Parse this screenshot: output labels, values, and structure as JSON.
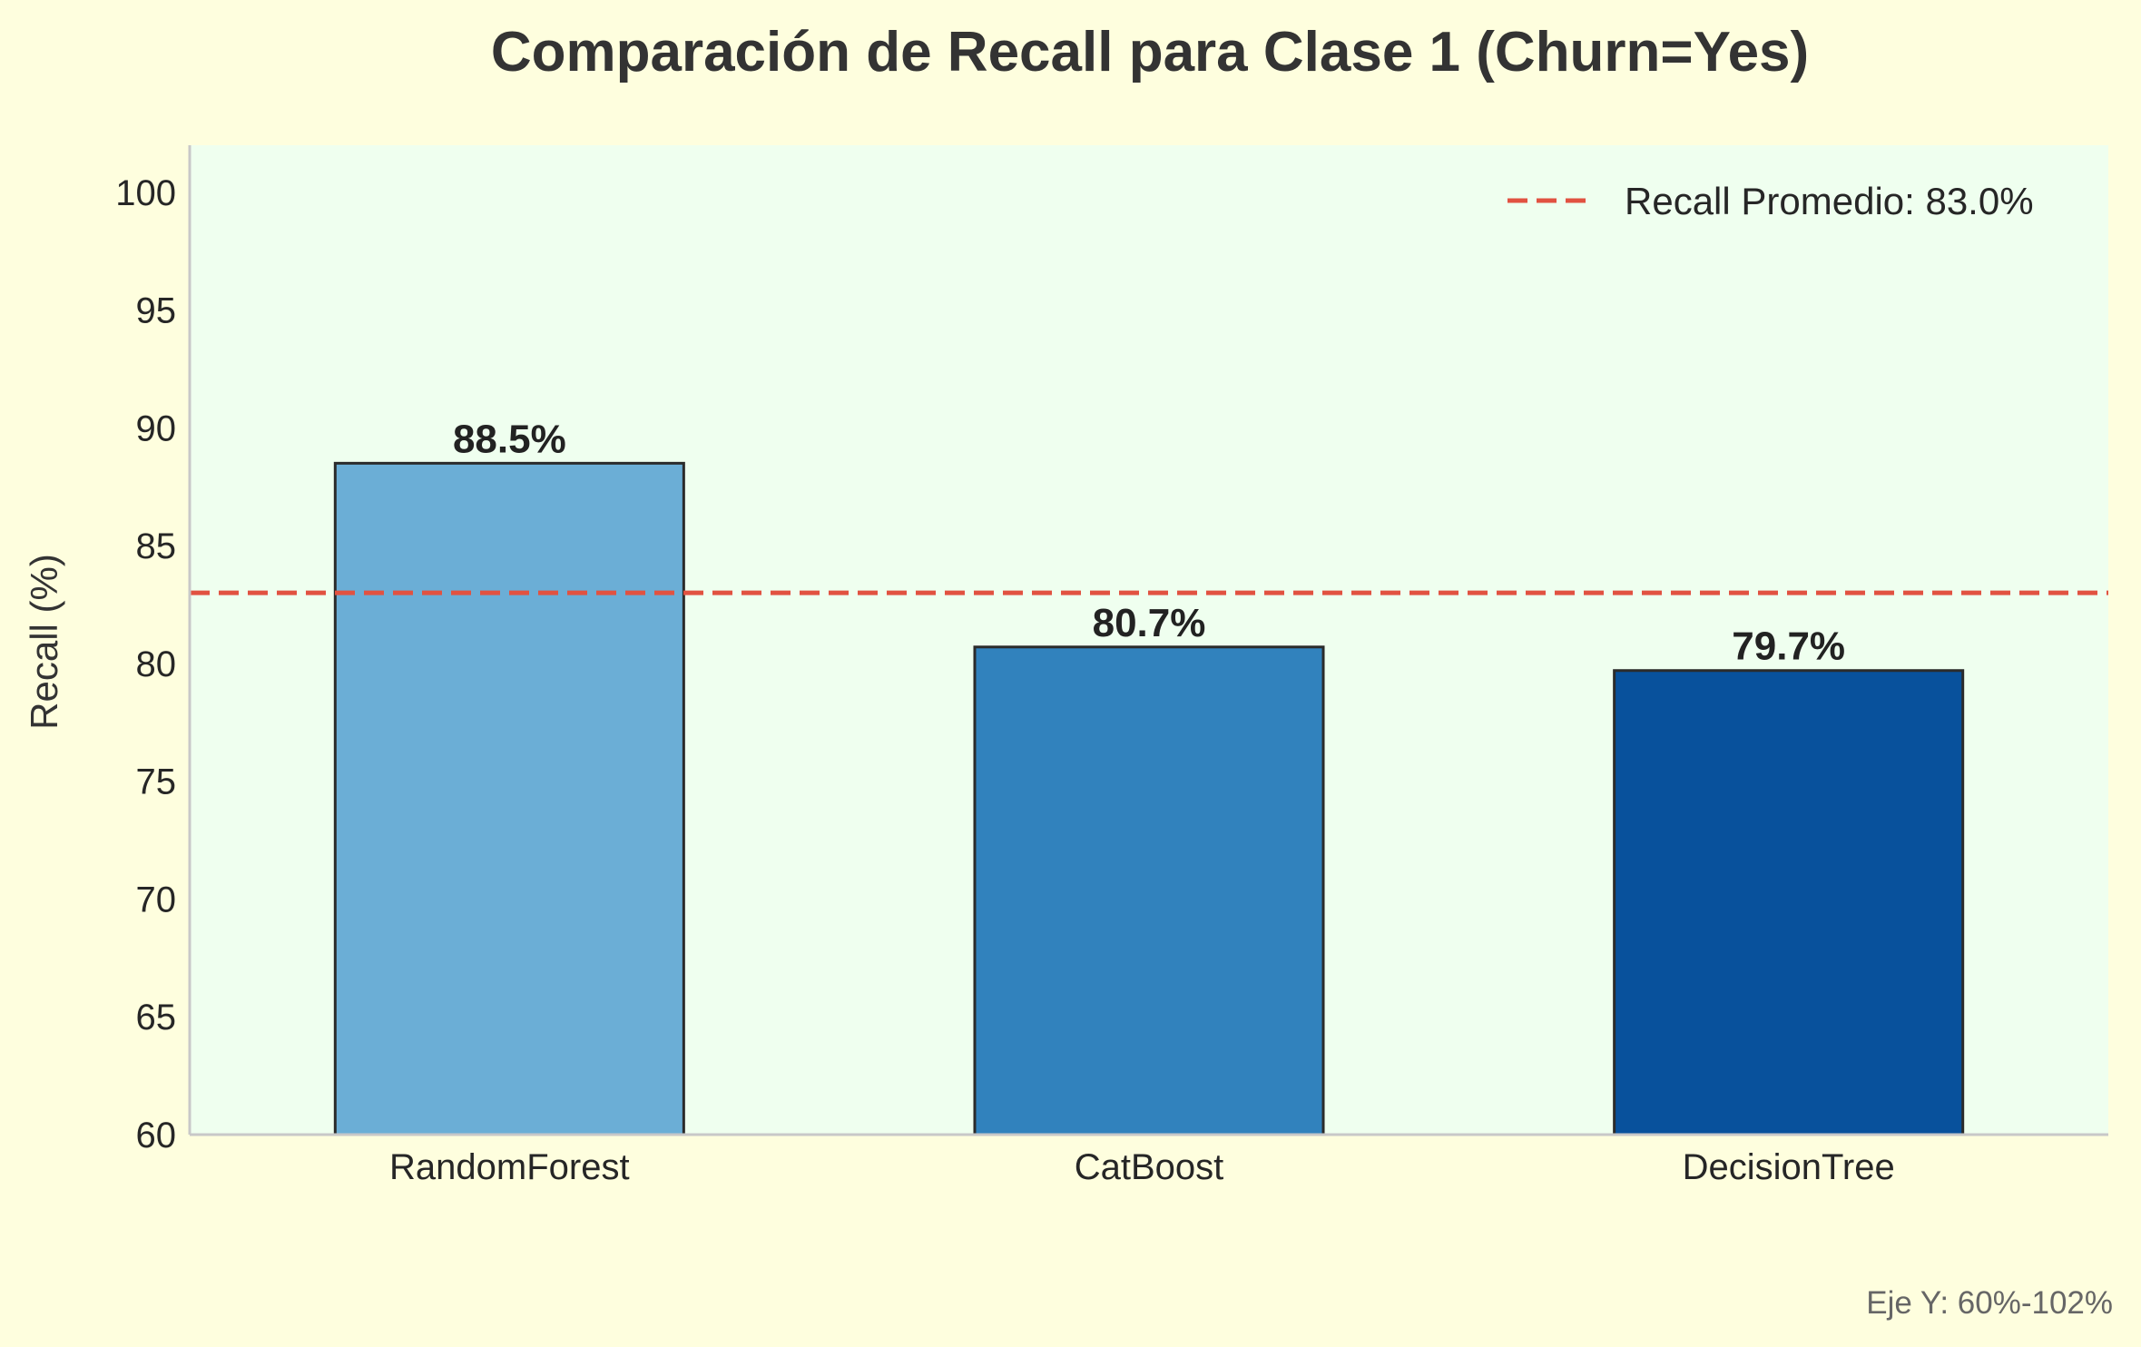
{
  "chart_data": {
    "type": "bar",
    "title": "Comparación de Recall para Clase 1 (Churn=Yes)",
    "xlabel": "",
    "ylabel": "Recall (%)",
    "categories": [
      "RandomForest",
      "CatBoost",
      "DecisionTree"
    ],
    "values": [
      88.5,
      80.7,
      79.7
    ],
    "value_labels": [
      "88.5%",
      "80.7%",
      "79.7%"
    ],
    "ylim": [
      60,
      102
    ],
    "yticks": [
      60,
      65,
      70,
      75,
      80,
      85,
      90,
      95,
      100
    ],
    "grid": false,
    "bar_colors": [
      "#6baed6",
      "#3182bd",
      "#08519c"
    ],
    "bar_edge_color": "#2b2b2b",
    "reference_line": {
      "value": 83.0,
      "label": "Recall Promedio: 83.0%",
      "color": "#e15241",
      "style": "dashed"
    },
    "legend": {
      "placement": "top-right",
      "entries": [
        "Recall Promedio: 83.0%"
      ]
    },
    "footnote": "Eje Y: 60%-102%",
    "colors": {
      "page_background": "#fefede",
      "plot_background": "#efffef",
      "axis": "#c8c8c8"
    }
  }
}
